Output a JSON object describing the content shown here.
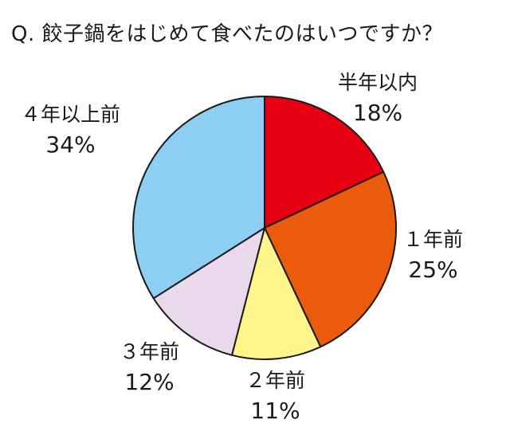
{
  "title": "Q. 餃子鍋をはじめて食べたのはいつですか？",
  "colors": {
    "outline": "#1a1a1a"
  },
  "chart_data": {
    "type": "pie",
    "start_angle_deg": 0,
    "direction": "clockwise",
    "slices": [
      {
        "label": "半年以内",
        "value": 18,
        "display": "18%",
        "color": "#e60012"
      },
      {
        "label": "１年前",
        "value": 25,
        "display": "25%",
        "color": "#ea5b0c"
      },
      {
        "label": "２年前",
        "value": 11,
        "display": "11%",
        "color": "#fff58a"
      },
      {
        "label": "３年前",
        "value": 12,
        "display": "12%",
        "color": "#ead8ec"
      },
      {
        "label": "４年以上前",
        "value": 34,
        "display": "34%",
        "color": "#8dcff3"
      }
    ]
  }
}
